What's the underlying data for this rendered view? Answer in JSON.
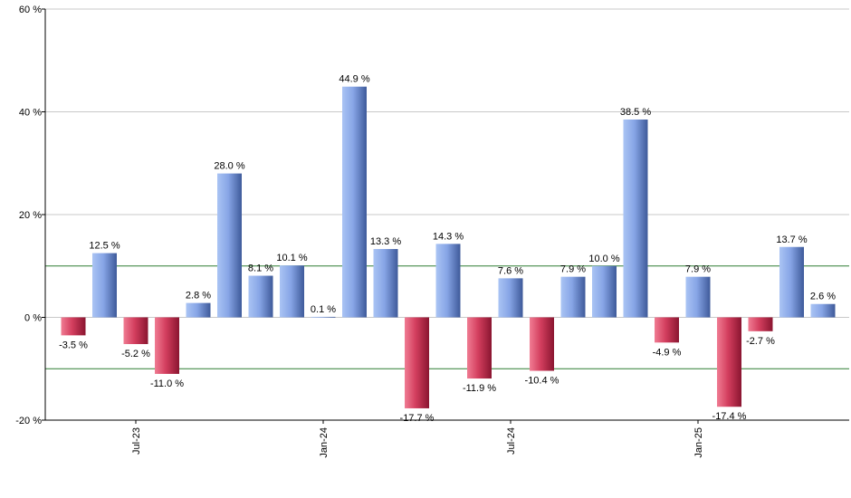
{
  "chart_data": {
    "type": "bar",
    "values": [
      -3.5,
      12.5,
      -5.2,
      -11.0,
      2.8,
      28.0,
      8.1,
      10.1,
      0.1,
      44.9,
      13.3,
      -17.7,
      14.3,
      -11.9,
      7.6,
      -10.4,
      7.9,
      10.0,
      38.5,
      -4.9,
      7.9,
      -17.4,
      -2.7,
      13.7,
      2.6
    ],
    "value_labels": [
      "-3.5 %",
      "12.5 %",
      "-5.2 %",
      "-11.0 %",
      "2.8 %",
      "28.0 %",
      "8.1 %",
      "10.1 %",
      "0.1 %",
      "44.9 %",
      "13.3 %",
      "-17.7 %",
      "14.3 %",
      "-11.9 %",
      "7.6 %",
      "-10.4 %",
      "7.9 %",
      "10.0 %",
      "38.5 %",
      "-4.9 %",
      "7.9 %",
      "-17.4 %",
      "-2.7 %",
      "13.7 %",
      "2.6 %"
    ],
    "x_ticks": [
      {
        "label": "Jul-23",
        "index": 2
      },
      {
        "label": "Jan-24",
        "index": 8
      },
      {
        "label": "Jul-24",
        "index": 14
      },
      {
        "label": "Jan-25",
        "index": 20
      }
    ],
    "y_ticks": [
      {
        "value": 60,
        "label": "60 %"
      },
      {
        "value": 40,
        "label": "40 %"
      },
      {
        "value": 20,
        "label": "20 %"
      },
      {
        "value": 0,
        "label": "0 %"
      },
      {
        "value": -20,
        "label": "-20 %"
      }
    ],
    "ylim": [
      -20,
      60
    ],
    "reference_lines": [
      10,
      -10
    ],
    "grid": true,
    "colors": {
      "positive_light": "#aac4f4",
      "positive_dark": "#3e5a9a",
      "negative_light": "#f07c93",
      "negative_dark": "#8a1530",
      "grid": "#c8c8c8",
      "reference": "#2e7d32",
      "axis": "#000000"
    }
  }
}
